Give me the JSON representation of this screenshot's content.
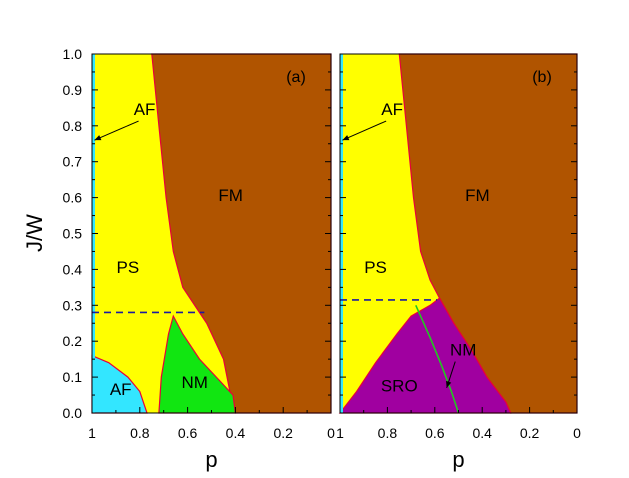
{
  "chart_data": {
    "type": "phase-diagram",
    "xlabel": "p",
    "ylabel": "J/W",
    "xlim": [
      1,
      0
    ],
    "ylim": [
      0,
      1
    ],
    "x_ticks": [
      "1",
      "0.8",
      "0.6",
      "0.4",
      "0.2",
      "0"
    ],
    "y_ticks": [
      "0.0",
      "0.1",
      "0.2",
      "0.3",
      "0.4",
      "0.5",
      "0.6",
      "0.7",
      "0.8",
      "0.9",
      "1.0"
    ],
    "colors": {
      "PS": "#ffff00",
      "FM": "#b05400",
      "AF": "#33e6ff",
      "NM": "#11e611",
      "SRO": "#a000a0",
      "AF_line": "#33e6ff",
      "boundary": "#e8003a",
      "dashed": "#1a1aa0",
      "nm_line": "#22c822"
    },
    "panels": [
      {
        "label": "(a)",
        "regions": [
          {
            "name": "FM",
            "label": "FM",
            "label_at": [
              0.42,
              0.59
            ]
          },
          {
            "name": "PS",
            "label": "PS",
            "label_at": [
              0.85,
              0.39
            ]
          },
          {
            "name": "AF",
            "label": "AF",
            "label_at": [
              0.88,
              0.05
            ]
          },
          {
            "name": "NM",
            "label": "NM",
            "label_at": [
              0.57,
              0.07
            ]
          }
        ],
        "boundaries": {
          "ps_fm": [
            [
              0.75,
              1.0
            ],
            [
              0.72,
              0.8
            ],
            [
              0.69,
              0.6
            ],
            [
              0.66,
              0.45
            ],
            [
              0.62,
              0.35
            ],
            [
              0.55,
              0.28
            ],
            [
              0.52,
              0.25
            ],
            [
              0.45,
              0.15
            ],
            [
              0.42,
              0.05
            ],
            [
              0.4,
              0.0
            ]
          ],
          "af": [
            [
              1.0,
              0.16
            ],
            [
              0.93,
              0.14
            ],
            [
              0.85,
              0.1
            ],
            [
              0.8,
              0.06
            ],
            [
              0.77,
              0.0
            ]
          ],
          "nm": [
            [
              0.72,
              0.0
            ],
            [
              0.71,
              0.1
            ],
            [
              0.68,
              0.22
            ],
            [
              0.66,
              0.27
            ],
            [
              0.62,
              0.22
            ],
            [
              0.55,
              0.15
            ],
            [
              0.48,
              0.1
            ],
            [
              0.41,
              0.05
            ],
            [
              0.4,
              0.0
            ]
          ]
        },
        "dashed_y": 0.28,
        "dashed_x_end": 0.53,
        "af_annotation": {
          "text": "AF",
          "label_at": [
            0.78,
            0.83
          ],
          "arrow_to": [
            0.99,
            0.76
          ]
        }
      },
      {
        "label": "(b)",
        "regions": [
          {
            "name": "FM",
            "label": "FM",
            "label_at": [
              0.42,
              0.59
            ]
          },
          {
            "name": "PS",
            "label": "PS",
            "label_at": [
              0.85,
              0.39
            ]
          },
          {
            "name": "SRO",
            "label": "SRO",
            "label_at": [
              0.75,
              0.06
            ]
          }
        ],
        "boundaries": {
          "ps_fm": [
            [
              0.75,
              1.0
            ],
            [
              0.72,
              0.8
            ],
            [
              0.69,
              0.6
            ],
            [
              0.66,
              0.45
            ],
            [
              0.62,
              0.37
            ],
            [
              0.58,
              0.32
            ],
            [
              0.52,
              0.25
            ],
            [
              0.45,
              0.18
            ],
            [
              0.38,
              0.1
            ],
            [
              0.3,
              0.03
            ],
            [
              0.28,
              0.0
            ]
          ],
          "sro": [
            [
              1.0,
              0.0
            ],
            [
              0.93,
              0.06
            ],
            [
              0.85,
              0.14
            ],
            [
              0.76,
              0.22
            ],
            [
              0.7,
              0.27
            ],
            [
              0.62,
              0.3
            ],
            [
              0.58,
              0.32
            ],
            [
              0.52,
              0.25
            ],
            [
              0.45,
              0.18
            ],
            [
              0.38,
              0.1
            ],
            [
              0.3,
              0.03
            ],
            [
              0.28,
              0.0
            ]
          ],
          "nm_line": [
            [
              0.68,
              0.3
            ],
            [
              0.62,
              0.21
            ],
            [
              0.57,
              0.13
            ],
            [
              0.53,
              0.06
            ],
            [
              0.5,
              0.0
            ]
          ]
        },
        "dashed_y": 0.315,
        "dashed_x_end": 0.59,
        "af_annotation": {
          "text": "AF",
          "label_at": [
            0.78,
            0.83
          ],
          "arrow_to": [
            0.99,
            0.76
          ]
        },
        "nm_annotation": {
          "text": "NM",
          "label_at": [
            0.48,
            0.16
          ],
          "arrow_to": [
            0.55,
            0.07
          ]
        }
      }
    ]
  }
}
